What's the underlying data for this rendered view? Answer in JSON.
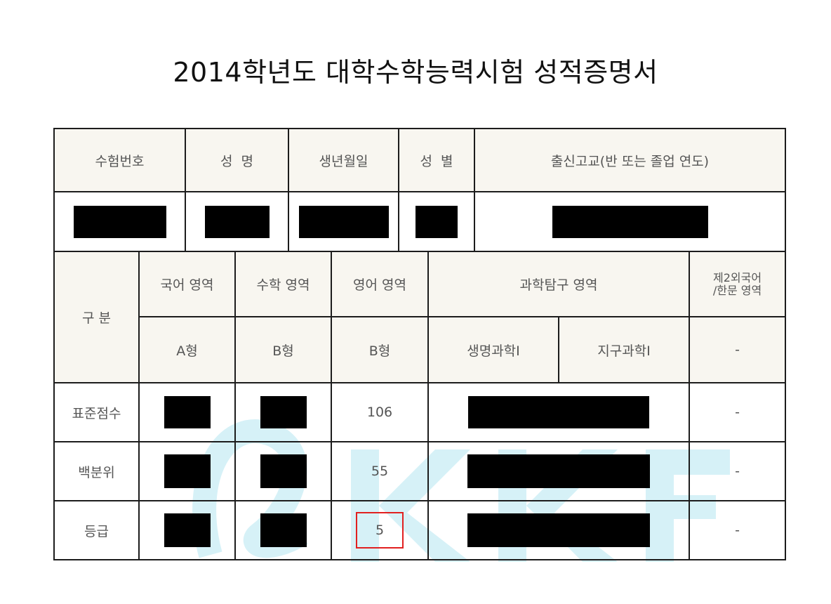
{
  "document": {
    "title": "2014학년도 대학수학능력시험 성적증명서"
  },
  "info_table": {
    "headers": [
      "수험번호",
      "성  명",
      "생년월일",
      "성  별",
      "출신고교(반 또는 졸업 연도)"
    ],
    "values_redacted": true
  },
  "scores_table": {
    "row_header_label": "구 분",
    "subjects": {
      "korean": "국어 영역",
      "math": "수학 영역",
      "english": "영어 영역",
      "science": "과학탐구 영역",
      "foreign": "제2외국어\n/한문 영역"
    },
    "types": {
      "korean": "A형",
      "math": "B형",
      "english": "B형",
      "science1": "생명과학Ⅰ",
      "science2": "지구과학Ⅰ",
      "foreign": "-"
    },
    "rows": [
      {
        "label": "표준점수",
        "english": "106",
        "foreign": "-"
      },
      {
        "label": "백분위",
        "english": "55",
        "foreign": "-"
      },
      {
        "label": "등급",
        "english": "5",
        "foreign": "-"
      }
    ]
  },
  "colors": {
    "header_bg": "#f8f6f0",
    "border": "#1c1c1c",
    "highlight": "#e12020",
    "watermark": "#d6f1f7"
  }
}
